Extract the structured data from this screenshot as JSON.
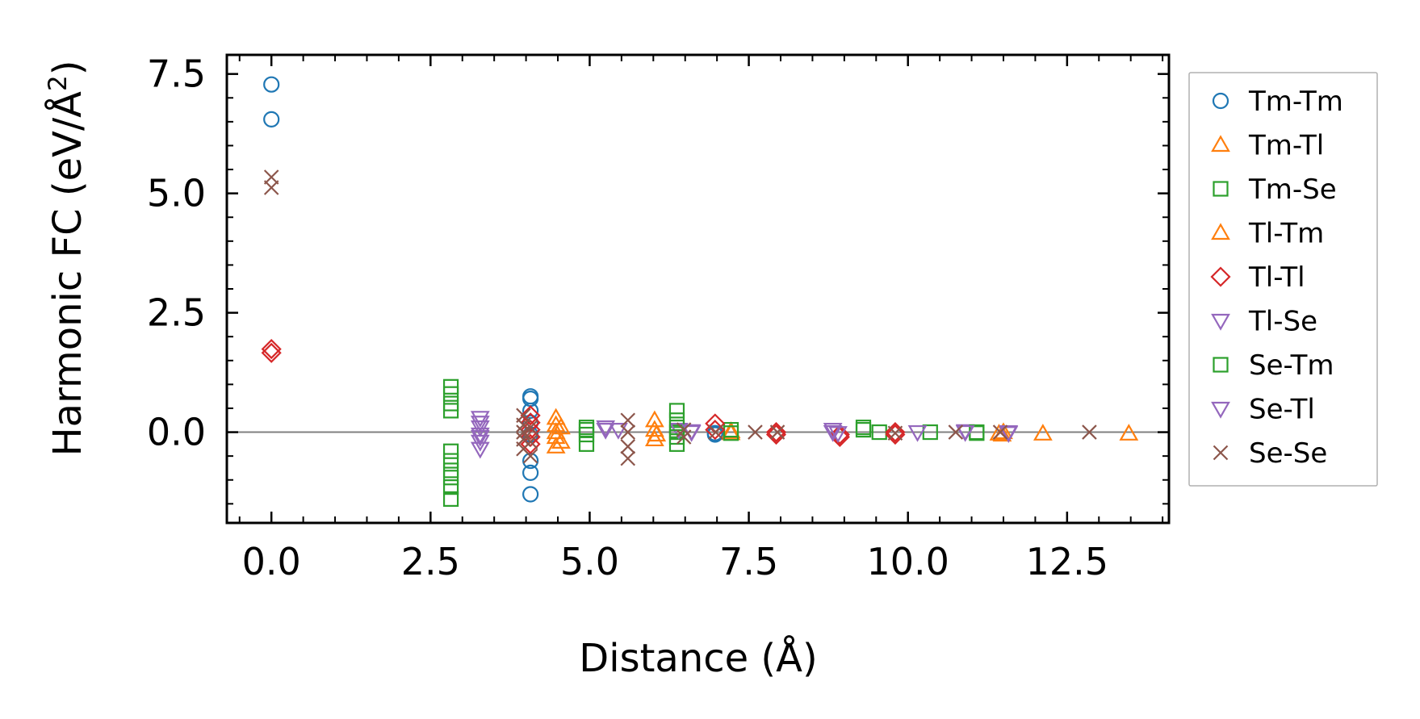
{
  "chart_data": {
    "type": "scatter",
    "title": "",
    "xlabel": "Distance (Å)",
    "ylabel_main": "Harmonic FC (eV/Å",
    "ylabel_sup": "2",
    "ylabel_end": ")",
    "xlim": [
      -0.7,
      14.1
    ],
    "ylim": [
      -1.9,
      7.9
    ],
    "x_ticks": [
      0.0,
      2.5,
      5.0,
      7.5,
      10.0,
      12.5
    ],
    "x_tick_labels": [
      "0.0",
      "2.5",
      "5.0",
      "7.5",
      "10.0",
      "12.5"
    ],
    "y_ticks": [
      0.0,
      2.5,
      5.0,
      7.5
    ],
    "y_tick_labels": [
      "0.0",
      "2.5",
      "5.0",
      "7.5"
    ],
    "x_minor_step": 0.5,
    "y_minor_step": 0.5,
    "zero_line": true,
    "legend_position": "outside-right",
    "series": [
      {
        "name": "Tm-Tm",
        "marker": "circle",
        "color": "#1f77b4",
        "points": [
          [
            0.0,
            7.28
          ],
          [
            0.0,
            6.55
          ],
          [
            4.07,
            0.75
          ],
          [
            4.07,
            0.7
          ],
          [
            4.07,
            0.45
          ],
          [
            4.07,
            0.2
          ],
          [
            4.07,
            -0.05
          ],
          [
            4.07,
            -0.6
          ],
          [
            4.07,
            -0.85
          ],
          [
            4.07,
            -1.3
          ],
          [
            6.97,
            -0.02
          ],
          [
            6.97,
            -0.05
          ]
        ]
      },
      {
        "name": "Tm-Tl",
        "marker": "triangle-up",
        "color": "#ff7f0e",
        "points": [
          [
            4.47,
            0.3
          ],
          [
            4.47,
            0.15
          ],
          [
            4.47,
            0.0
          ],
          [
            4.47,
            -0.1
          ],
          [
            4.47,
            -0.3
          ],
          [
            6.02,
            0.25
          ],
          [
            6.02,
            0.05
          ],
          [
            6.02,
            -0.15
          ],
          [
            7.22,
            0.02
          ],
          [
            7.22,
            -0.02
          ],
          [
            11.43,
            -0.03
          ],
          [
            11.5,
            0.0
          ],
          [
            12.12,
            -0.03
          ],
          [
            13.47,
            -0.03
          ]
        ]
      },
      {
        "name": "Tm-Se",
        "marker": "square",
        "color": "#2ca02c",
        "points": [
          [
            2.82,
            0.95
          ],
          [
            2.82,
            0.8
          ],
          [
            2.82,
            0.45
          ],
          [
            2.82,
            -0.4
          ],
          [
            2.82,
            -0.6
          ],
          [
            2.82,
            -0.8
          ],
          [
            2.82,
            -1.15
          ],
          [
            2.82,
            -1.4
          ],
          [
            4.95,
            0.1
          ],
          [
            4.95,
            -0.05
          ],
          [
            4.95,
            -0.25
          ],
          [
            6.37,
            0.45
          ],
          [
            6.37,
            0.25
          ],
          [
            6.37,
            0.0
          ],
          [
            6.37,
            -0.25
          ],
          [
            7.22,
            0.05
          ],
          [
            7.22,
            -0.02
          ],
          [
            9.3,
            0.1
          ],
          [
            9.55,
            0.0
          ],
          [
            10.35,
            0.0
          ],
          [
            11.08,
            -0.02
          ]
        ]
      },
      {
        "name": "Tl-Tm",
        "marker": "triangle-up",
        "color": "#ff7f0e",
        "points": [
          [
            4.55,
            0.1
          ],
          [
            4.55,
            -0.2
          ],
          [
            6.05,
            -0.05
          ],
          [
            11.48,
            -0.05
          ]
        ]
      },
      {
        "name": "Tl-Tl",
        "marker": "diamond",
        "color": "#d62728",
        "points": [
          [
            0.0,
            1.74
          ],
          [
            0.0,
            1.66
          ],
          [
            4.07,
            0.35
          ],
          [
            4.07,
            0.2
          ],
          [
            4.07,
            0.05
          ],
          [
            4.07,
            -0.1
          ],
          [
            4.07,
            -0.25
          ],
          [
            6.97,
            0.18
          ],
          [
            6.97,
            0.05
          ],
          [
            7.93,
            0.0
          ],
          [
            7.93,
            -0.05
          ],
          [
            8.93,
            -0.05
          ],
          [
            8.93,
            -0.1
          ],
          [
            9.8,
            0.0
          ],
          [
            9.8,
            -0.05
          ]
        ]
      },
      {
        "name": "Tl-Se",
        "marker": "triangle-down",
        "color": "#9467bd",
        "points": [
          [
            3.28,
            0.3
          ],
          [
            3.28,
            0.1
          ],
          [
            3.28,
            -0.05
          ],
          [
            3.28,
            -0.2
          ],
          [
            3.28,
            -0.35
          ],
          [
            5.25,
            0.1
          ],
          [
            5.45,
            0.05
          ],
          [
            6.4,
            0.05
          ],
          [
            6.6,
            0.0
          ],
          [
            8.82,
            0.05
          ],
          [
            8.9,
            -0.02
          ],
          [
            10.15,
            0.0
          ],
          [
            10.9,
            0.02
          ],
          [
            11.58,
            0.0
          ]
        ]
      },
      {
        "name": "Se-Tm",
        "marker": "square",
        "color": "#2ca02c",
        "points": [
          [
            2.82,
            0.6
          ],
          [
            2.82,
            -0.95
          ],
          [
            4.95,
            0.05
          ],
          [
            6.37,
            0.1
          ],
          [
            6.37,
            -0.1
          ],
          [
            9.3,
            0.05
          ],
          [
            11.08,
            0.0
          ]
        ]
      },
      {
        "name": "Se-Tl",
        "marker": "triangle-down",
        "color": "#9467bd",
        "points": [
          [
            3.28,
            0.2
          ],
          [
            3.28,
            -0.1
          ],
          [
            5.25,
            0.05
          ],
          [
            6.6,
            0.02
          ],
          [
            8.82,
            0.0
          ],
          [
            10.9,
            0.0
          ],
          [
            11.58,
            -0.02
          ]
        ]
      },
      {
        "name": "Se-Se",
        "marker": "x",
        "color": "#8c564b",
        "points": [
          [
            0.0,
            5.34
          ],
          [
            0.0,
            5.12
          ],
          [
            3.96,
            0.35
          ],
          [
            3.96,
            0.15
          ],
          [
            3.96,
            0.0
          ],
          [
            3.96,
            -0.15
          ],
          [
            3.96,
            -0.35
          ],
          [
            4.07,
            0.1
          ],
          [
            4.07,
            -0.2
          ],
          [
            4.07,
            -0.5
          ],
          [
            5.6,
            0.25
          ],
          [
            5.6,
            0.0
          ],
          [
            5.6,
            -0.3
          ],
          [
            5.6,
            -0.55
          ],
          [
            6.48,
            0.05
          ],
          [
            6.48,
            -0.1
          ],
          [
            6.98,
            0.0
          ],
          [
            7.6,
            0.0
          ],
          [
            7.95,
            0.0
          ],
          [
            9.8,
            -0.02
          ],
          [
            10.75,
            0.0
          ],
          [
            11.45,
            0.0
          ],
          [
            12.85,
            0.0
          ]
        ]
      }
    ]
  }
}
